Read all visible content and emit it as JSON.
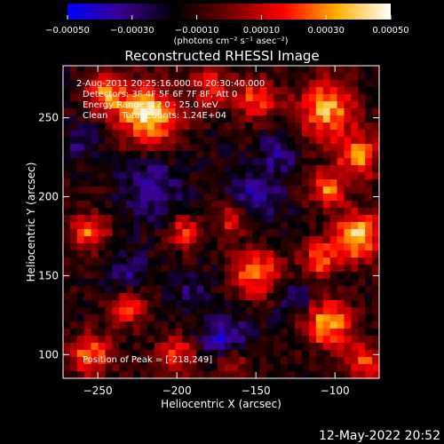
{
  "chart_data": {
    "type": "heatmap",
    "title": "Reconstructed RHESSI Image",
    "xlabel": "Heliocentric X (arcsec)",
    "ylabel": "Heliocentric Y (arcsec)",
    "xlim": [
      -272,
      -72
    ],
    "ylim": [
      85,
      283
    ],
    "x_ticks": [
      -250,
      -200,
      -150,
      -100
    ],
    "x_tick_labels": [
      "−250",
      "−200",
      "−150",
      "−100"
    ],
    "y_ticks": [
      100,
      150,
      200,
      250
    ],
    "y_tick_labels": [
      "100",
      "150",
      "200",
      "250"
    ],
    "colorbar": {
      "range": [
        -0.0005,
        0.0005
      ],
      "ticks": [
        -0.0005,
        -0.0003,
        -0.0001,
        0.0001,
        0.0003,
        0.0005
      ],
      "tick_labels": [
        "−0.00050",
        "−0.00030",
        "−0.00010",
        "0.00010",
        "0.00030",
        "0.00050"
      ],
      "unit_label": "(photons cm⁻² s⁻¹ asec⁻²)",
      "colormap": [
        "#0000ff",
        "#3a0090",
        "#000000",
        "#700000",
        "#ff0000",
        "#ffb000",
        "#ffffff"
      ]
    },
    "peak": [
      -218,
      249
    ],
    "hot_regions": [
      {
        "x": -218,
        "y": 252,
        "radius": 22,
        "intensity": 0.00048
      },
      {
        "x": -245,
        "y": 265,
        "radius": 16,
        "intensity": 0.0003
      },
      {
        "x": -178,
        "y": 270,
        "radius": 14,
        "intensity": 0.00024
      },
      {
        "x": -150,
        "y": 262,
        "radius": 16,
        "intensity": 0.00025
      },
      {
        "x": -105,
        "y": 255,
        "radius": 22,
        "intensity": 0.00038
      },
      {
        "x": -85,
        "y": 225,
        "radius": 16,
        "intensity": 0.00032
      },
      {
        "x": -105,
        "y": 205,
        "radius": 14,
        "intensity": 0.0003
      },
      {
        "x": -85,
        "y": 175,
        "radius": 18,
        "intensity": 0.00044
      },
      {
        "x": -110,
        "y": 160,
        "radius": 14,
        "intensity": 0.00028
      },
      {
        "x": -150,
        "y": 152,
        "radius": 18,
        "intensity": 0.00033
      },
      {
        "x": -165,
        "y": 185,
        "radius": 12,
        "intensity": 0.00022
      },
      {
        "x": -195,
        "y": 178,
        "radius": 12,
        "intensity": 0.00025
      },
      {
        "x": -255,
        "y": 178,
        "radius": 14,
        "intensity": 0.0003
      },
      {
        "x": -230,
        "y": 130,
        "radius": 14,
        "intensity": 0.00026
      },
      {
        "x": -255,
        "y": 100,
        "radius": 16,
        "intensity": 0.0003
      },
      {
        "x": -200,
        "y": 100,
        "radius": 14,
        "intensity": 0.00026
      },
      {
        "x": -105,
        "y": 120,
        "radius": 18,
        "intensity": 0.0004
      },
      {
        "x": -80,
        "y": 95,
        "radius": 14,
        "intensity": 0.0003
      },
      {
        "x": -165,
        "y": 95,
        "radius": 12,
        "intensity": 0.0002
      }
    ],
    "cold_regions": [
      {
        "x": -215,
        "y": 205,
        "radius": 22,
        "intensity": -0.0003
      },
      {
        "x": -150,
        "y": 200,
        "radius": 20,
        "intensity": -0.0003
      },
      {
        "x": -230,
        "y": 150,
        "radius": 16,
        "intensity": -0.00026
      },
      {
        "x": -170,
        "y": 110,
        "radius": 18,
        "intensity": -0.00035
      },
      {
        "x": -135,
        "y": 230,
        "radius": 14,
        "intensity": -0.00028
      },
      {
        "x": -260,
        "y": 235,
        "radius": 14,
        "intensity": -0.00024
      },
      {
        "x": -125,
        "y": 135,
        "radius": 14,
        "intensity": -0.00028
      },
      {
        "x": -190,
        "y": 140,
        "radius": 14,
        "intensity": -0.00022
      }
    ]
  },
  "annotations": {
    "time_range": "2-Aug-2011 20:25:16.000 to 20:30:40.000",
    "detectors": "Detectors: 3F 4F 5F 6F 7F 8F, Att 0",
    "energy_range": "Energy Range: 12.0 - 25.0 keV",
    "method_counts": "Clean     Total Counts: 1.24E+04",
    "peak_position": "Position of Peak = [-218,249]"
  },
  "footer": {
    "datetime": "12-May-2022 20:52"
  }
}
